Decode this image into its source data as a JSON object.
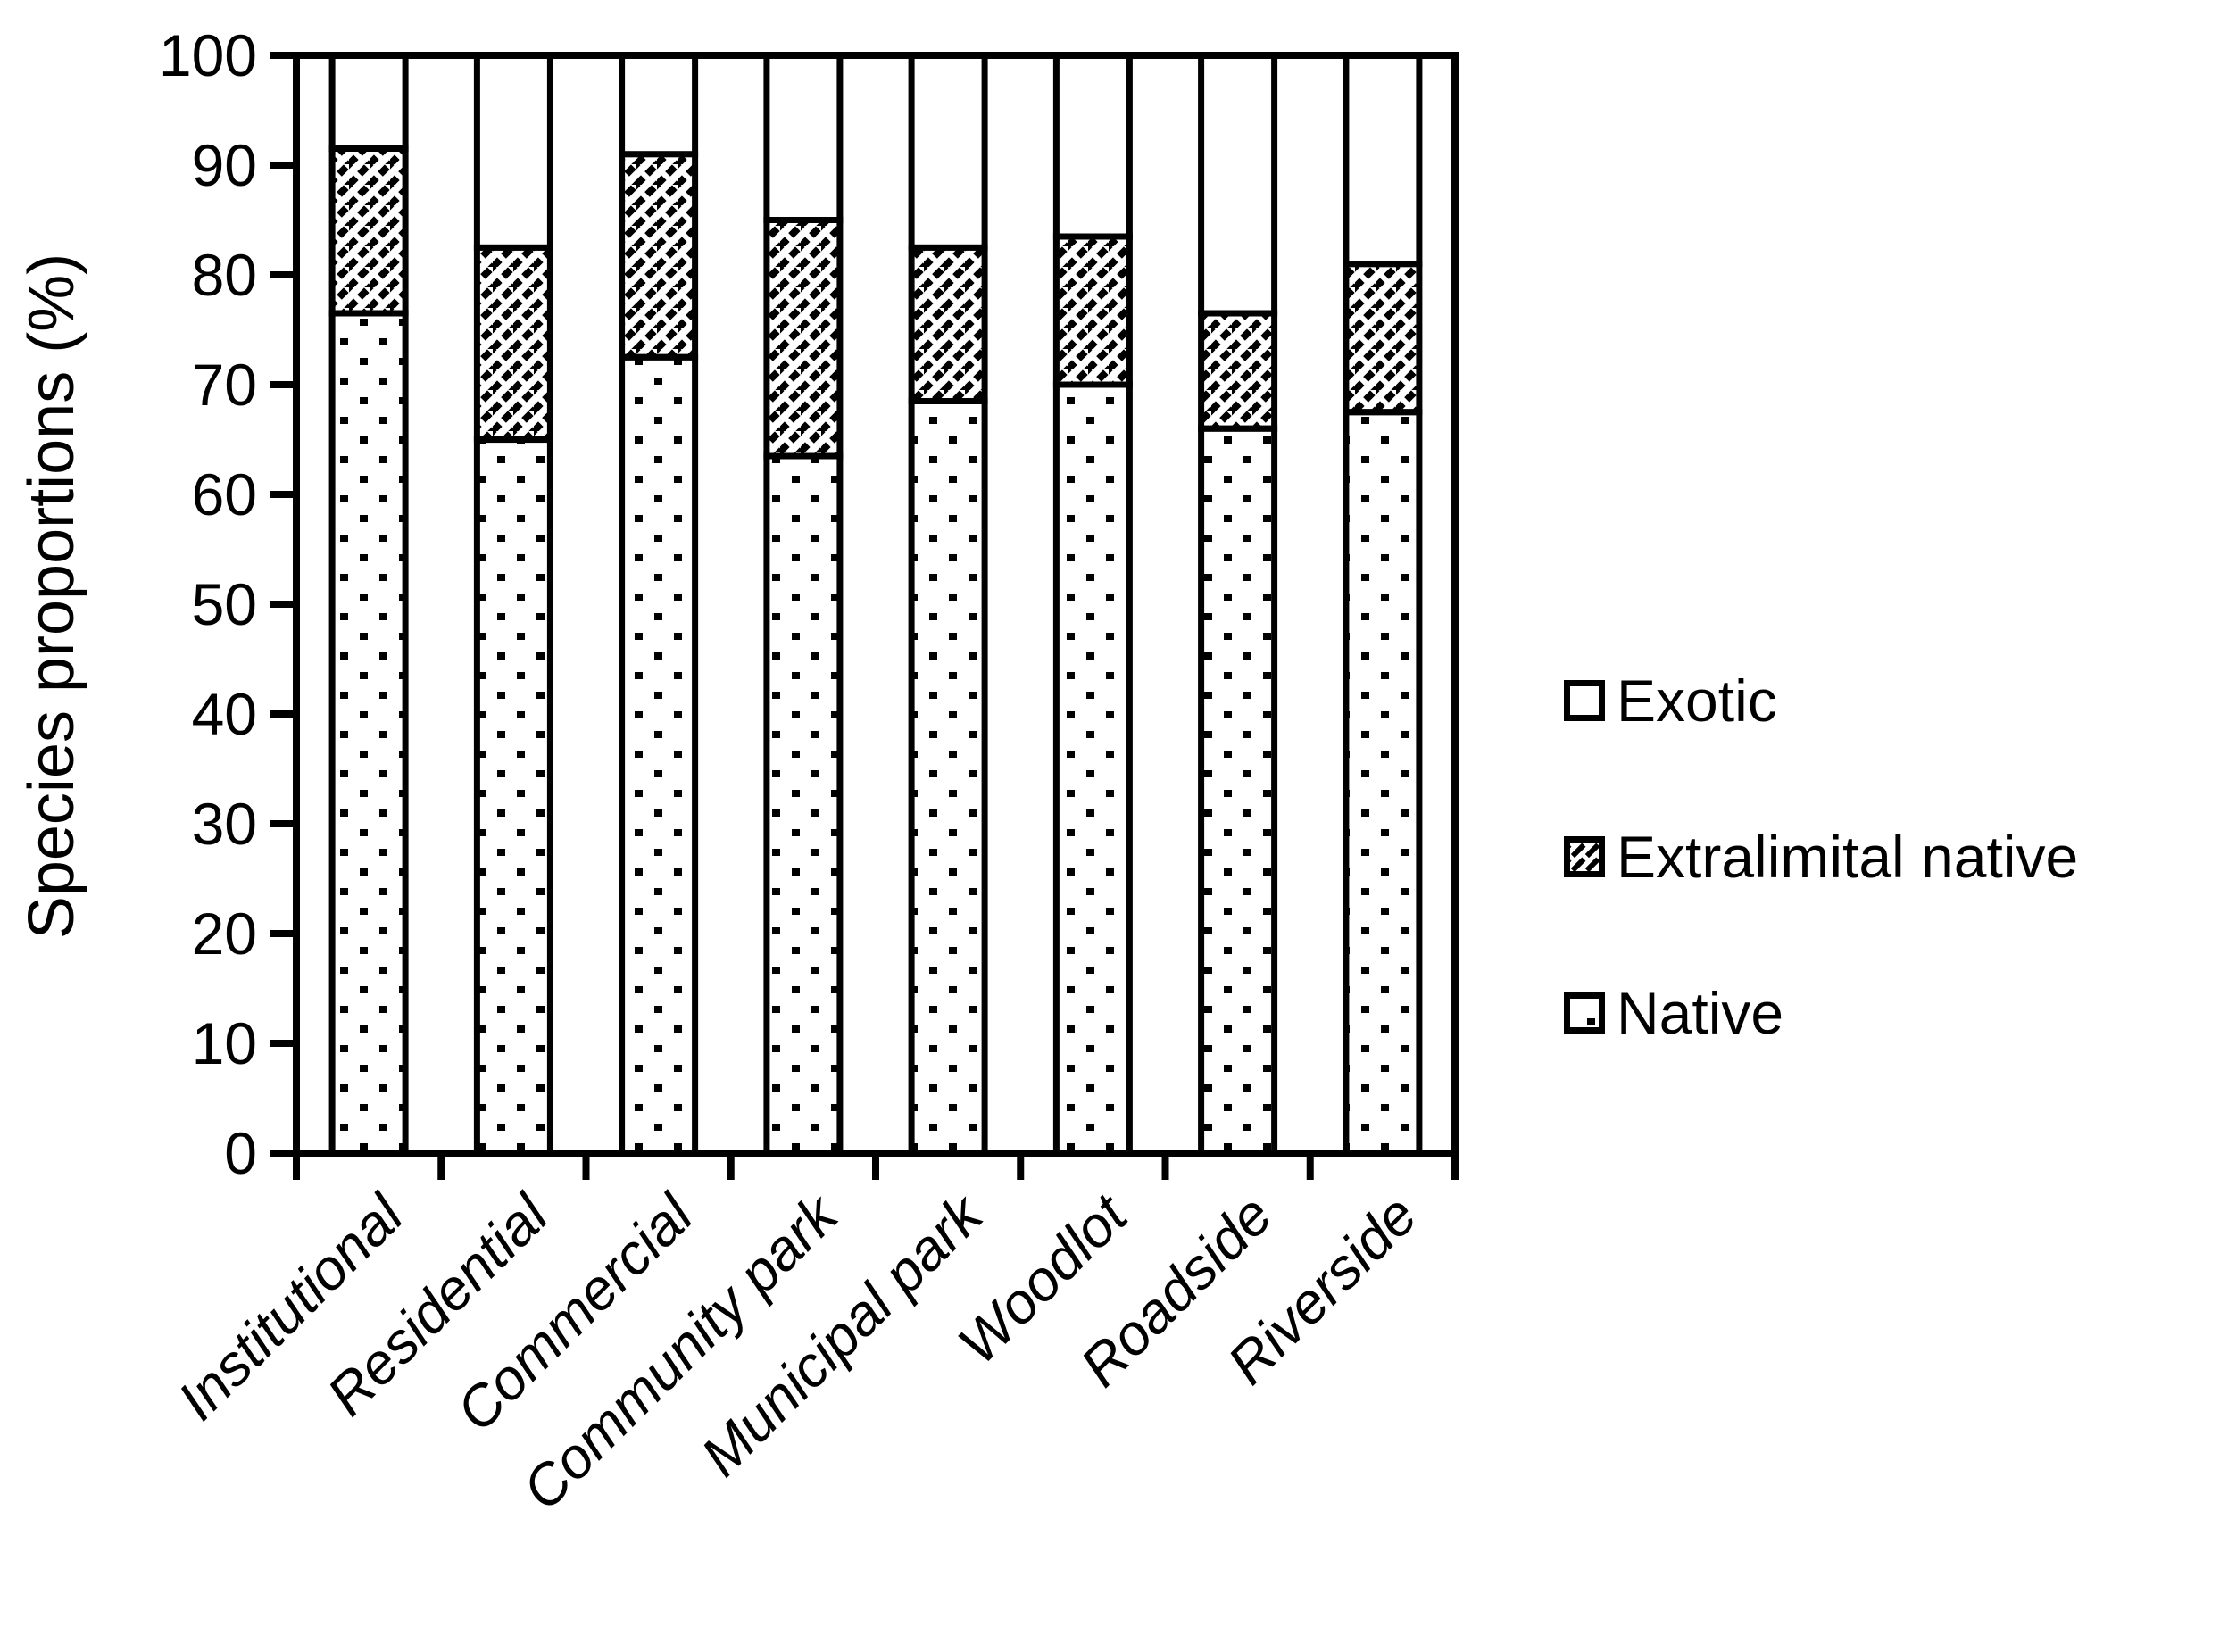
{
  "colors": {
    "ink": "#000000",
    "background": "#ffffff"
  },
  "chart_data": {
    "type": "bar",
    "stacked": true,
    "title": "",
    "xlabel": "",
    "ylabel": "Species proportions (%)",
    "ylim": [
      0,
      100
    ],
    "yticks": [
      0,
      10,
      20,
      30,
      40,
      50,
      60,
      70,
      80,
      90,
      100
    ],
    "grid": false,
    "categories": [
      "Institutional",
      "Residential",
      "Commercial",
      "Community park",
      "Municipal park",
      "Woodlot",
      "Roadside",
      "Riverside"
    ],
    "series": [
      {
        "name": "Native",
        "pattern": "dots",
        "values": [
          76.5,
          65,
          72.5,
          63.5,
          68.5,
          70,
          66,
          67.5
        ]
      },
      {
        "name": "Extralimital native",
        "pattern": "hatch",
        "values": [
          15,
          17.5,
          18.5,
          21.5,
          14,
          13.5,
          10.5,
          13.5
        ]
      },
      {
        "name": "Exotic",
        "pattern": "plain",
        "values": [
          8.5,
          17.5,
          9,
          15,
          17.5,
          16.5,
          23.5,
          19
        ]
      }
    ],
    "legend": {
      "position": "right",
      "entries": [
        {
          "label": "Exotic",
          "pattern": "plain"
        },
        {
          "label": "Extralimital native",
          "pattern": "hatch"
        },
        {
          "label": "Native",
          "pattern": "dots"
        }
      ]
    }
  }
}
